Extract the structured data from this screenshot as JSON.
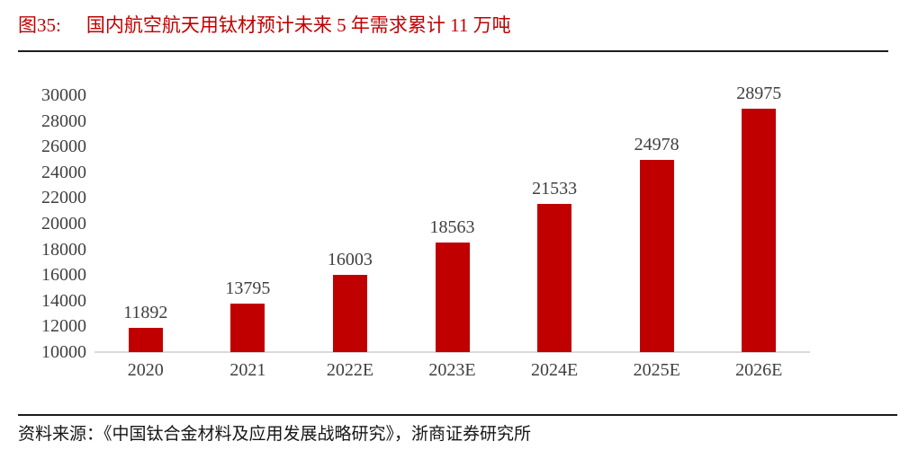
{
  "header": {
    "figure_label": "图35:",
    "title": "国内航空航天用钛材预计未来 5 年需求累计 11 万吨"
  },
  "footer": {
    "source_text": "资料来源：《中国钛合金材料及应用发展战略研究》，浙商证券研究所"
  },
  "theme": {
    "title_color": "#C00000",
    "bar_color": "#C00000",
    "label_color": "#3f3f3f",
    "axis_color": "#d9d9d9",
    "rule_color": "#1c1c1c",
    "background": "#ffffff"
  },
  "chart_data": {
    "type": "bar",
    "title": "国内航空航天用钛材预计未来 5 年需求累计 11 万吨",
    "categories": [
      "2020",
      "2021",
      "2022E",
      "2023E",
      "2024E",
      "2025E",
      "2026E"
    ],
    "values": [
      11892,
      13795,
      16003,
      18563,
      21533,
      24978,
      28975
    ],
    "data_labels": [
      11892,
      13795,
      16003,
      18563,
      21533,
      24978,
      28975
    ],
    "xlabel": "",
    "ylabel": "",
    "ylim": [
      10000,
      30000
    ],
    "ytick_step": 2000,
    "yticks": [
      10000,
      12000,
      14000,
      16000,
      18000,
      20000,
      22000,
      24000,
      26000,
      28000,
      30000
    ],
    "grid": false,
    "legend": null,
    "bar_color": "#C00000"
  }
}
